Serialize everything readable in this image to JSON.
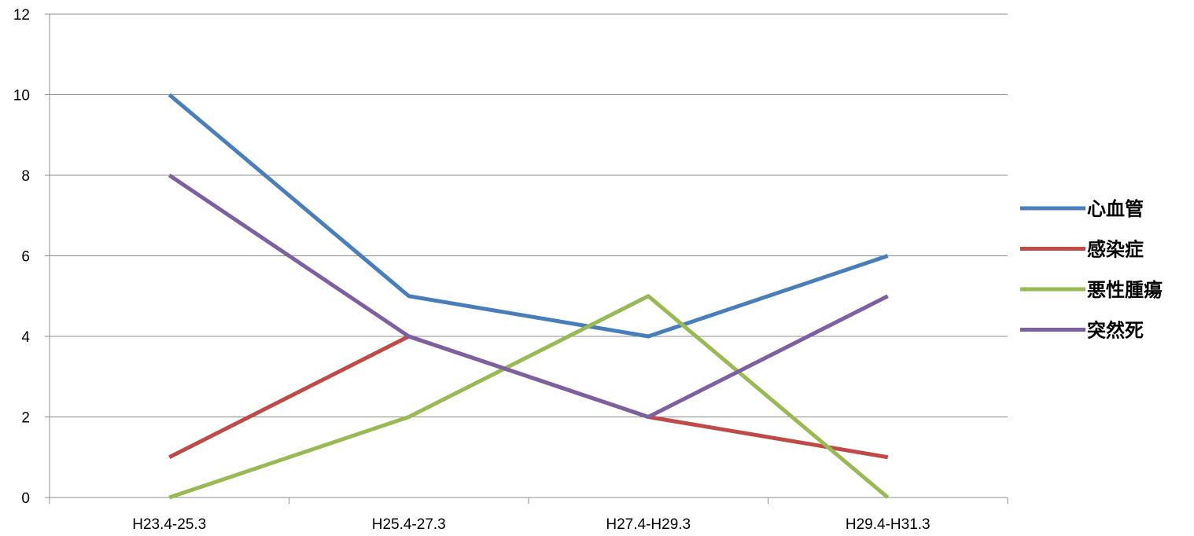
{
  "chart_data": {
    "type": "line",
    "categories": [
      "H23.4-25.3",
      "H25.4-27.3",
      "H27.4-H29.3",
      "H29.4-H31.3"
    ],
    "series": [
      {
        "name": "心血管",
        "color": "#4a7ebb",
        "values": [
          10,
          5,
          4,
          6
        ]
      },
      {
        "name": "感染症",
        "color": "#be4b48",
        "values": [
          1,
          4,
          2,
          1
        ]
      },
      {
        "name": "悪性腫瘍",
        "color": "#98b954",
        "values": [
          0,
          2,
          5,
          0
        ]
      },
      {
        "name": "突然死",
        "color": "#7d60a0",
        "values": [
          8,
          4,
          2,
          5
        ]
      }
    ],
    "ylim": [
      0,
      12
    ],
    "yticks": [
      0,
      2,
      4,
      6,
      8,
      10,
      12
    ],
    "grid": true,
    "legend_position": "right",
    "title": "",
    "xlabel": "",
    "ylabel": ""
  }
}
